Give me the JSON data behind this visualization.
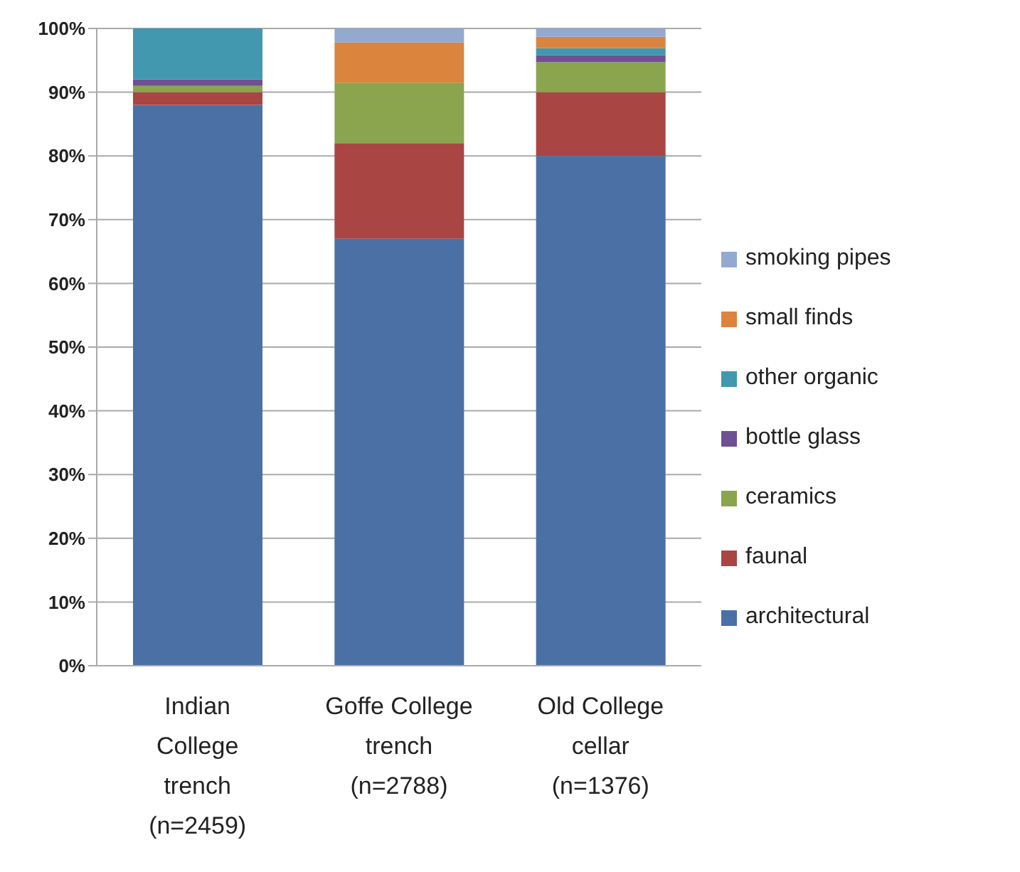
{
  "chart_data": {
    "type": "bar",
    "stacked": true,
    "categories": [
      "Indian College trench (n=2459)",
      "Goffe College trench (n=2788)",
      "Old College cellar (n=1376)"
    ],
    "series": [
      {
        "name": "architectural",
        "color": "#4a70a6",
        "values": [
          88,
          67,
          80
        ]
      },
      {
        "name": "faunal",
        "color": "#a94543",
        "values": [
          2,
          15,
          10
        ]
      },
      {
        "name": "ceramics",
        "color": "#8aa54d",
        "values": [
          1,
          9.5,
          4.7
        ]
      },
      {
        "name": "bottle glass",
        "color": "#6e5193",
        "values": [
          1,
          0,
          1.1
        ]
      },
      {
        "name": "other organic",
        "color": "#4298ae",
        "values": [
          8,
          0,
          1.1
        ]
      },
      {
        "name": "small finds",
        "color": "#da843e",
        "values": [
          0,
          6.3,
          1.8
        ]
      },
      {
        "name": "smoking pipes",
        "color": "#93a9d0",
        "values": [
          0,
          2.2,
          1.3
        ]
      }
    ],
    "ylim": [
      0,
      100
    ],
    "yticks": [
      {
        "value": 0,
        "label": "0%"
      },
      {
        "value": 10,
        "label": "10%"
      },
      {
        "value": 20,
        "label": "20%"
      },
      {
        "value": 30,
        "label": "30%"
      },
      {
        "value": 40,
        "label": "40%"
      },
      {
        "value": 50,
        "label": "50%"
      },
      {
        "value": 60,
        "label": "60%"
      },
      {
        "value": 70,
        "label": "70%"
      },
      {
        "value": 80,
        "label": "80%"
      },
      {
        "value": 90,
        "label": "90%"
      },
      {
        "value": 100,
        "label": "100%"
      }
    ],
    "grid": "y",
    "legend": "right"
  }
}
